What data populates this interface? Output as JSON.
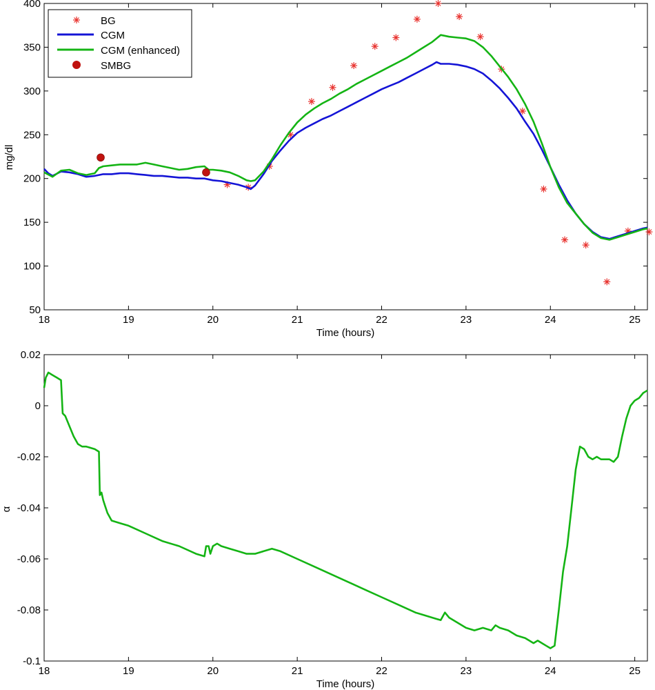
{
  "chart_data": [
    {
      "type": "line",
      "title": "",
      "xlabel": "Time (hours)",
      "ylabel": "mg/dl",
      "xlim": [
        18,
        25.15
      ],
      "ylim": [
        50,
        400
      ],
      "xticks": [
        18,
        19,
        20,
        21,
        22,
        23,
        24,
        25
      ],
      "yticks": [
        50,
        100,
        150,
        200,
        250,
        300,
        350,
        400
      ],
      "grid": false,
      "legend_position": "top-left",
      "series": [
        {
          "name": "BG",
          "kind": "scatter-star",
          "color": "#e8332f",
          "x": [
            19.92,
            20.17,
            20.42,
            20.67,
            20.92,
            21.17,
            21.42,
            21.67,
            21.92,
            22.17,
            22.42,
            22.67,
            22.92,
            23.17,
            23.42,
            23.67,
            23.92,
            24.17,
            24.42,
            24.67,
            24.92,
            25.17
          ],
          "y": [
            207,
            193,
            190,
            214,
            250,
            288,
            304,
            329,
            351,
            361,
            382,
            400,
            385,
            362,
            325,
            277,
            188,
            130,
            124,
            82,
            140,
            139
          ]
        },
        {
          "name": "CGM",
          "kind": "line",
          "color": "#1414d6",
          "x": [
            18.0,
            18.05,
            18.1,
            18.2,
            18.3,
            18.4,
            18.5,
            18.6,
            18.7,
            18.8,
            18.9,
            19.0,
            19.1,
            19.2,
            19.3,
            19.4,
            19.5,
            19.6,
            19.7,
            19.8,
            19.9,
            20.0,
            20.1,
            20.2,
            20.3,
            20.4,
            20.45,
            20.5,
            20.6,
            20.7,
            20.8,
            20.9,
            21.0,
            21.1,
            21.2,
            21.3,
            21.4,
            21.5,
            21.6,
            21.7,
            21.8,
            21.9,
            22.0,
            22.1,
            22.2,
            22.3,
            22.4,
            22.5,
            22.6,
            22.65,
            22.7,
            22.8,
            22.9,
            23.0,
            23.1,
            23.2,
            23.3,
            23.4,
            23.5,
            23.6,
            23.7,
            23.8,
            23.9,
            24.0,
            24.1,
            24.2,
            24.3,
            24.4,
            24.5,
            24.6,
            24.7,
            24.8,
            24.9,
            25.0,
            25.1,
            25.15
          ],
          "y": [
            211,
            206,
            203,
            208,
            207,
            205,
            202,
            203,
            205,
            205,
            206,
            206,
            205,
            204,
            203,
            203,
            202,
            201,
            201,
            200,
            200,
            198,
            197,
            195,
            193,
            190,
            188,
            192,
            205,
            220,
            232,
            243,
            252,
            258,
            263,
            268,
            272,
            277,
            282,
            287,
            292,
            297,
            302,
            306,
            310,
            315,
            320,
            325,
            330,
            333,
            331,
            331,
            330,
            328,
            325,
            320,
            312,
            303,
            292,
            280,
            265,
            251,
            233,
            213,
            193,
            175,
            160,
            148,
            139,
            133,
            131,
            134,
            137,
            140,
            143,
            144
          ]
        },
        {
          "name": "CGM (enhanced)",
          "kind": "line",
          "color": "#14b414",
          "x": [
            18.0,
            18.1,
            18.2,
            18.3,
            18.4,
            18.5,
            18.6,
            18.65,
            18.7,
            18.8,
            18.9,
            19.0,
            19.1,
            19.2,
            19.3,
            19.4,
            19.5,
            19.6,
            19.7,
            19.8,
            19.9,
            19.95,
            20.0,
            20.1,
            20.2,
            20.3,
            20.4,
            20.45,
            20.5,
            20.6,
            20.7,
            20.8,
            20.9,
            21.0,
            21.1,
            21.2,
            21.3,
            21.4,
            21.5,
            21.6,
            21.7,
            21.8,
            21.9,
            22.0,
            22.1,
            22.2,
            22.3,
            22.4,
            22.5,
            22.6,
            22.65,
            22.7,
            22.8,
            22.9,
            23.0,
            23.1,
            23.2,
            23.3,
            23.4,
            23.5,
            23.6,
            23.7,
            23.8,
            23.9,
            24.0,
            24.1,
            24.2,
            24.3,
            24.4,
            24.5,
            24.6,
            24.7,
            24.8,
            24.9,
            25.0,
            25.1,
            25.15
          ],
          "y": [
            207,
            202,
            209,
            210,
            206,
            204,
            206,
            212,
            214,
            215,
            216,
            216,
            216,
            218,
            216,
            214,
            212,
            210,
            211,
            213,
            214,
            210,
            210,
            209,
            207,
            203,
            198,
            197,
            198,
            208,
            222,
            238,
            252,
            264,
            273,
            280,
            286,
            291,
            297,
            302,
            308,
            313,
            318,
            323,
            328,
            333,
            338,
            344,
            350,
            356,
            360,
            364,
            362,
            361,
            360,
            357,
            350,
            340,
            328,
            316,
            302,
            285,
            265,
            240,
            213,
            190,
            172,
            160,
            148,
            138,
            132,
            130,
            133,
            136,
            139,
            142,
            143
          ]
        },
        {
          "name": "SMBG",
          "kind": "scatter-dot",
          "color": "#c0120f",
          "x": [
            18.67,
            19.92
          ],
          "y": [
            224,
            207
          ]
        }
      ]
    },
    {
      "type": "line",
      "title": "",
      "xlabel": "Time (hours)",
      "ylabel": "α",
      "xlim": [
        18,
        25.15
      ],
      "ylim": [
        -0.1,
        0.02
      ],
      "xticks": [
        18,
        19,
        20,
        21,
        22,
        23,
        24,
        25
      ],
      "yticks": [
        -0.1,
        -0.08,
        -0.06,
        -0.04,
        -0.02,
        0,
        0.02
      ],
      "ytick_labels": [
        "-0.1",
        "-0.08",
        "-0.06",
        "-0.04",
        "-0.02",
        "0",
        "0.02"
      ],
      "grid": false,
      "series": [
        {
          "name": "alpha",
          "kind": "line",
          "color": "#14b414",
          "x": [
            18.0,
            18.02,
            18.05,
            18.1,
            18.15,
            18.2,
            18.22,
            18.25,
            18.3,
            18.35,
            18.4,
            18.45,
            18.5,
            18.6,
            18.65,
            18.66,
            18.68,
            18.7,
            18.72,
            18.75,
            18.8,
            18.9,
            19.0,
            19.2,
            19.4,
            19.6,
            19.8,
            19.9,
            19.92,
            19.95,
            19.97,
            20.0,
            20.05,
            20.1,
            20.2,
            20.3,
            20.4,
            20.5,
            20.6,
            20.7,
            20.8,
            21.0,
            21.2,
            21.4,
            21.6,
            21.8,
            22.0,
            22.2,
            22.4,
            22.6,
            22.7,
            22.75,
            22.8,
            22.9,
            23.0,
            23.1,
            23.2,
            23.3,
            23.35,
            23.4,
            23.5,
            23.6,
            23.7,
            23.75,
            23.8,
            23.85,
            23.9,
            23.95,
            24.0,
            24.05,
            24.1,
            24.15,
            24.2,
            24.25,
            24.3,
            24.35,
            24.4,
            24.45,
            24.5,
            24.55,
            24.6,
            24.65,
            24.7,
            24.75,
            24.8,
            24.85,
            24.9,
            24.95,
            25.0,
            25.05,
            25.1,
            25.15
          ],
          "y": [
            0.007,
            0.011,
            0.013,
            0.012,
            0.011,
            0.01,
            -0.003,
            -0.004,
            -0.008,
            -0.012,
            -0.015,
            -0.016,
            -0.016,
            -0.017,
            -0.018,
            -0.035,
            -0.034,
            -0.037,
            -0.039,
            -0.042,
            -0.045,
            -0.046,
            -0.047,
            -0.05,
            -0.053,
            -0.055,
            -0.058,
            -0.059,
            -0.055,
            -0.055,
            -0.058,
            -0.055,
            -0.054,
            -0.055,
            -0.056,
            -0.057,
            -0.058,
            -0.058,
            -0.057,
            -0.056,
            -0.057,
            -0.06,
            -0.063,
            -0.066,
            -0.069,
            -0.072,
            -0.075,
            -0.078,
            -0.081,
            -0.083,
            -0.084,
            -0.081,
            -0.083,
            -0.085,
            -0.087,
            -0.088,
            -0.087,
            -0.088,
            -0.086,
            -0.087,
            -0.088,
            -0.09,
            -0.091,
            -0.092,
            -0.093,
            -0.092,
            -0.093,
            -0.094,
            -0.095,
            -0.094,
            -0.08,
            -0.065,
            -0.055,
            -0.04,
            -0.025,
            -0.016,
            -0.017,
            -0.02,
            -0.021,
            -0.02,
            -0.021,
            -0.021,
            -0.021,
            -0.022,
            -0.02,
            -0.012,
            -0.005,
            0.0,
            0.002,
            0.003,
            0.005,
            0.006
          ]
        }
      ]
    }
  ]
}
